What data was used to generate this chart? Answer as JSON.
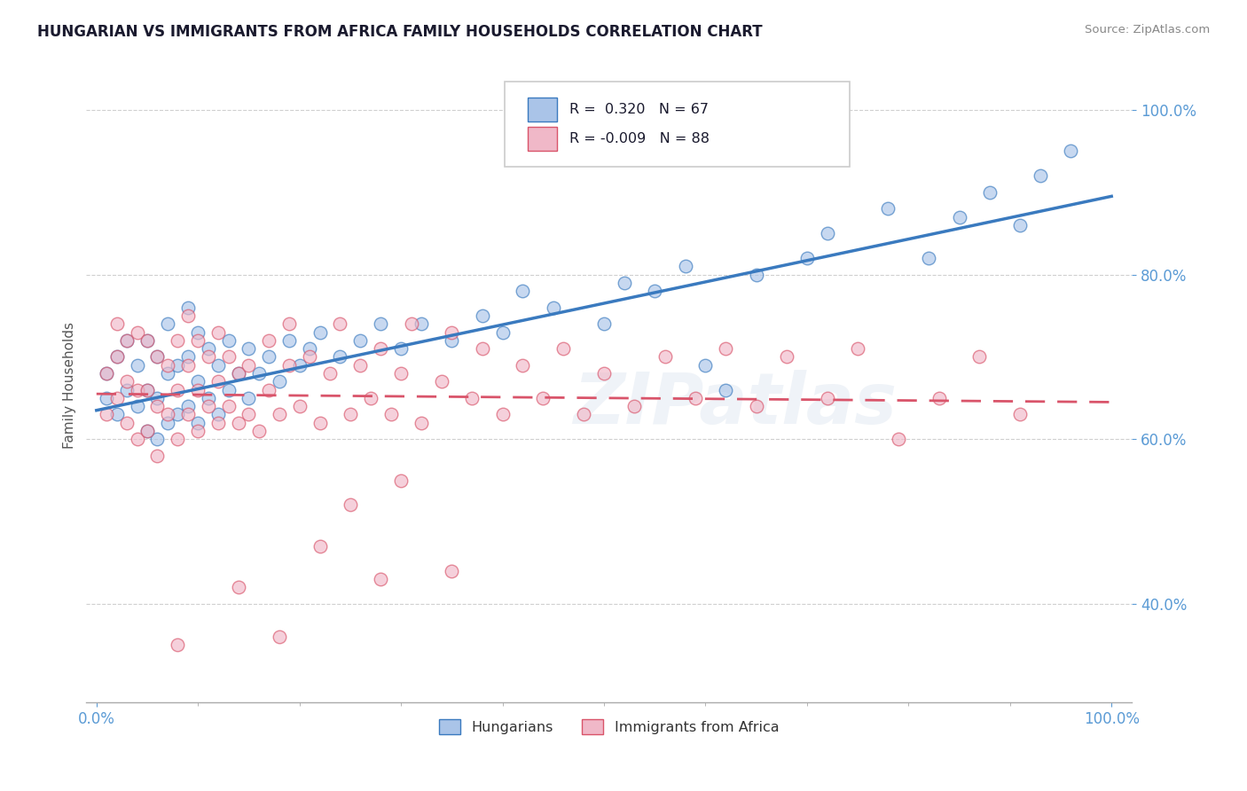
{
  "title": "HUNGARIAN VS IMMIGRANTS FROM AFRICA FAMILY HOUSEHOLDS CORRELATION CHART",
  "source": "Source: ZipAtlas.com",
  "ylabel": "Family Households",
  "r_hungarian": 0.32,
  "n_hungarian": 67,
  "r_africa": -0.009,
  "n_africa": 88,
  "blue_color": "#aac4e8",
  "pink_color": "#f0b8c8",
  "blue_line_color": "#3a7abf",
  "pink_line_color": "#d9546a",
  "watermark": "ZIPatlas",
  "yticks": [
    0.4,
    0.6,
    0.8,
    1.0
  ],
  "ytick_labels": [
    "40.0%",
    "60.0%",
    "80.0%",
    "100.0%"
  ],
  "xtick_labels": [
    "0.0%",
    "100.0%"
  ],
  "ylim_low": 0.28,
  "ylim_high": 1.05,
  "xlim_low": -0.01,
  "xlim_high": 1.02,
  "blue_trend_start_y": 0.635,
  "blue_trend_end_y": 0.895,
  "pink_trend_start_y": 0.655,
  "pink_trend_end_y": 0.645,
  "hung_x": [
    0.01,
    0.01,
    0.02,
    0.02,
    0.03,
    0.03,
    0.04,
    0.04,
    0.05,
    0.05,
    0.05,
    0.06,
    0.06,
    0.06,
    0.07,
    0.07,
    0.07,
    0.08,
    0.08,
    0.09,
    0.09,
    0.09,
    0.1,
    0.1,
    0.1,
    0.11,
    0.11,
    0.12,
    0.12,
    0.13,
    0.13,
    0.14,
    0.15,
    0.15,
    0.16,
    0.17,
    0.18,
    0.19,
    0.2,
    0.21,
    0.22,
    0.24,
    0.26,
    0.28,
    0.3,
    0.32,
    0.35,
    0.38,
    0.4,
    0.42,
    0.45,
    0.5,
    0.52,
    0.55,
    0.58,
    0.6,
    0.62,
    0.65,
    0.7,
    0.72,
    0.78,
    0.82,
    0.85,
    0.88,
    0.91,
    0.93,
    0.96
  ],
  "hung_y": [
    0.65,
    0.68,
    0.63,
    0.7,
    0.66,
    0.72,
    0.64,
    0.69,
    0.61,
    0.66,
    0.72,
    0.6,
    0.65,
    0.7,
    0.62,
    0.68,
    0.74,
    0.63,
    0.69,
    0.64,
    0.7,
    0.76,
    0.62,
    0.67,
    0.73,
    0.65,
    0.71,
    0.63,
    0.69,
    0.66,
    0.72,
    0.68,
    0.65,
    0.71,
    0.68,
    0.7,
    0.67,
    0.72,
    0.69,
    0.71,
    0.73,
    0.7,
    0.72,
    0.74,
    0.71,
    0.74,
    0.72,
    0.75,
    0.73,
    0.78,
    0.76,
    0.74,
    0.79,
    0.78,
    0.81,
    0.69,
    0.66,
    0.8,
    0.82,
    0.85,
    0.88,
    0.82,
    0.87,
    0.9,
    0.86,
    0.92,
    0.95
  ],
  "afr_x": [
    0.01,
    0.01,
    0.02,
    0.02,
    0.02,
    0.03,
    0.03,
    0.03,
    0.04,
    0.04,
    0.04,
    0.05,
    0.05,
    0.05,
    0.06,
    0.06,
    0.06,
    0.07,
    0.07,
    0.08,
    0.08,
    0.08,
    0.09,
    0.09,
    0.09,
    0.1,
    0.1,
    0.1,
    0.11,
    0.11,
    0.12,
    0.12,
    0.12,
    0.13,
    0.13,
    0.14,
    0.14,
    0.15,
    0.15,
    0.16,
    0.17,
    0.17,
    0.18,
    0.19,
    0.19,
    0.2,
    0.21,
    0.22,
    0.23,
    0.24,
    0.25,
    0.26,
    0.27,
    0.28,
    0.29,
    0.3,
    0.31,
    0.32,
    0.34,
    0.35,
    0.37,
    0.38,
    0.4,
    0.42,
    0.44,
    0.46,
    0.48,
    0.5,
    0.53,
    0.56,
    0.59,
    0.62,
    0.65,
    0.68,
    0.72,
    0.75,
    0.79,
    0.83,
    0.87,
    0.91,
    0.25,
    0.3,
    0.35,
    0.14,
    0.22,
    0.28,
    0.18,
    0.08
  ],
  "afr_y": [
    0.63,
    0.68,
    0.65,
    0.7,
    0.74,
    0.62,
    0.67,
    0.72,
    0.6,
    0.66,
    0.73,
    0.61,
    0.66,
    0.72,
    0.58,
    0.64,
    0.7,
    0.63,
    0.69,
    0.6,
    0.66,
    0.72,
    0.63,
    0.69,
    0.75,
    0.61,
    0.66,
    0.72,
    0.64,
    0.7,
    0.62,
    0.67,
    0.73,
    0.64,
    0.7,
    0.62,
    0.68,
    0.63,
    0.69,
    0.61,
    0.66,
    0.72,
    0.63,
    0.69,
    0.74,
    0.64,
    0.7,
    0.62,
    0.68,
    0.74,
    0.63,
    0.69,
    0.65,
    0.71,
    0.63,
    0.68,
    0.74,
    0.62,
    0.67,
    0.73,
    0.65,
    0.71,
    0.63,
    0.69,
    0.65,
    0.71,
    0.63,
    0.68,
    0.64,
    0.7,
    0.65,
    0.71,
    0.64,
    0.7,
    0.65,
    0.71,
    0.6,
    0.65,
    0.7,
    0.63,
    0.52,
    0.55,
    0.44,
    0.42,
    0.47,
    0.43,
    0.36,
    0.35
  ]
}
